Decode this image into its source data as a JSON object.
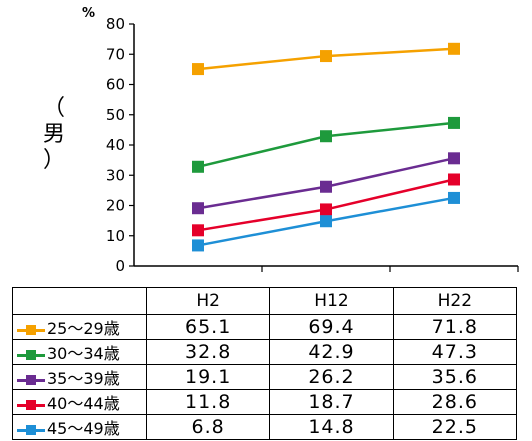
{
  "chart_data": {
    "type": "line",
    "unit_label": "%",
    "side_label": [
      "（",
      "男",
      "）"
    ],
    "categories": [
      "H2",
      "H12",
      "H22"
    ],
    "ylim": [
      0,
      80
    ],
    "yticks": [
      "0",
      "10",
      "20",
      "30",
      "40",
      "50",
      "60",
      "70",
      "80"
    ],
    "series": [
      {
        "name": "25〜29歳",
        "color": "#f5a100",
        "values": [
          65.1,
          69.4,
          71.8
        ],
        "labels": [
          "65.1",
          "69.4",
          "71.8"
        ]
      },
      {
        "name": "30〜34歳",
        "color": "#1e9a3c",
        "values": [
          32.8,
          42.9,
          47.3
        ],
        "labels": [
          "32.8",
          "42.9",
          "47.3"
        ]
      },
      {
        "name": "35〜39歳",
        "color": "#6a2c91",
        "values": [
          19.1,
          26.2,
          35.6
        ],
        "labels": [
          "19.1",
          "26.2",
          "35.6"
        ]
      },
      {
        "name": "40〜44歳",
        "color": "#e5002a",
        "values": [
          11.8,
          18.7,
          28.6
        ],
        "labels": [
          "11.8",
          "18.7",
          "28.6"
        ]
      },
      {
        "name": "45〜49歳",
        "color": "#1e8fd6",
        "values": [
          6.8,
          14.8,
          22.5
        ],
        "labels": [
          "6.8",
          "14.8",
          "22.5"
        ]
      }
    ]
  }
}
